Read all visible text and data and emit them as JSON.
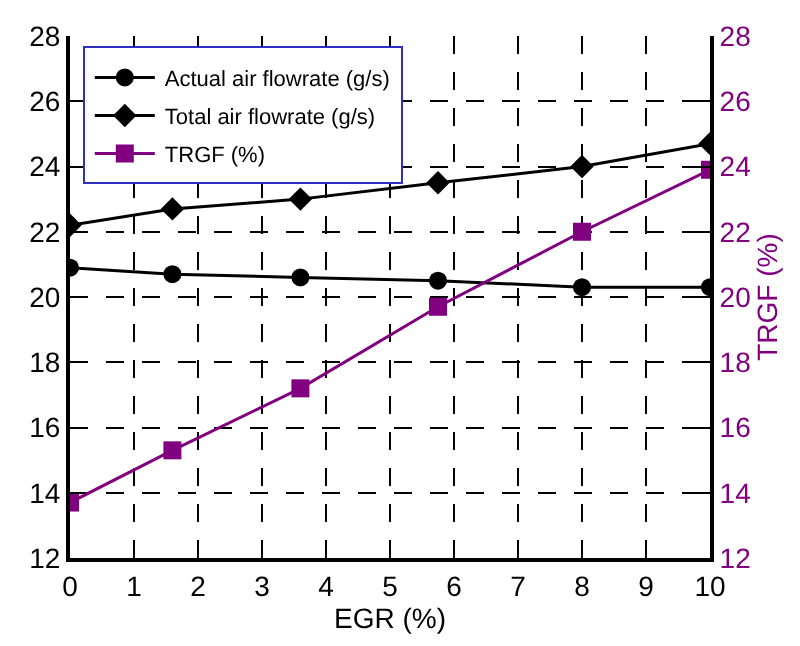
{
  "chart_data": {
    "type": "line",
    "xlabel": "EGR (%)",
    "y2label": "TRGF (%)",
    "x": [
      0,
      1.6,
      3.6,
      5.75,
      8,
      10
    ],
    "series": [
      {
        "name": "Actual air flowrate (g/s)",
        "color": "#000000",
        "marker": "circle",
        "values": [
          20.9,
          20.7,
          20.6,
          20.5,
          20.3,
          20.3
        ]
      },
      {
        "name": "Total air flowrate (g/s)",
        "color": "#000000",
        "marker": "diamond",
        "values": [
          22.2,
          22.7,
          23.0,
          23.5,
          24.0,
          24.7
        ]
      },
      {
        "name": "TRGF (%)",
        "color": "#800080",
        "marker": "square",
        "axis": "y2",
        "values": [
          13.7,
          15.3,
          17.2,
          19.7,
          22.0,
          23.9
        ]
      }
    ],
    "xlim": [
      0,
      10
    ],
    "xticks": [
      0,
      1,
      2,
      3,
      4,
      5,
      6,
      7,
      8,
      9,
      10
    ],
    "ylim": [
      12,
      28
    ],
    "yticks": [
      12,
      14,
      16,
      18,
      20,
      22,
      24,
      26,
      28
    ],
    "y2lim": [
      12,
      28
    ],
    "y2ticks": [
      12,
      14,
      16,
      18,
      20,
      22,
      24,
      26,
      28
    ],
    "grid": true,
    "line_style": "solid",
    "legend": "top left"
  }
}
